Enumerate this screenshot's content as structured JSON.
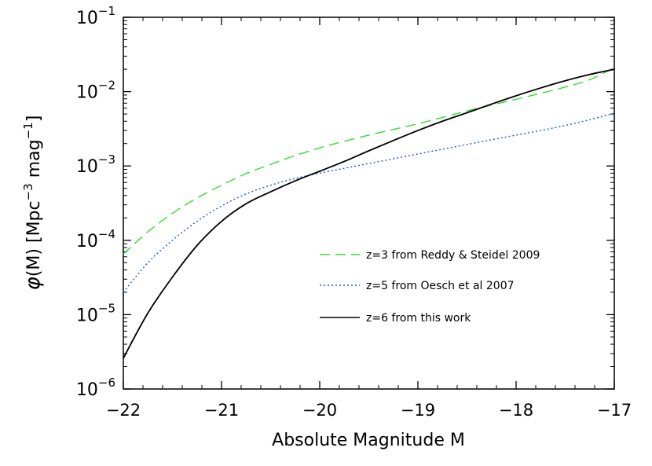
{
  "chart_data": {
    "type": "line",
    "title": "",
    "xlabel": "Absolute Magnitude M",
    "ylabel": "φ(M)  [Mpc^-3 mag^-1]",
    "ylabel_parts": {
      "phi": "φ",
      "main": "(M)  [Mpc",
      "exp1": "−3",
      "mid": " mag",
      "exp2": "−1",
      "end": "]"
    },
    "xlim": [
      -22,
      -17
    ],
    "ylim": [
      1e-06,
      0.1
    ],
    "yscale": "log",
    "grid": false,
    "legend_position": "center-right",
    "x_ticks": [
      {
        "value": -22,
        "label": "−22"
      },
      {
        "value": -21,
        "label": "−21"
      },
      {
        "value": -20,
        "label": "−20"
      },
      {
        "value": -19,
        "label": "−19"
      },
      {
        "value": -18,
        "label": "−18"
      },
      {
        "value": -17,
        "label": "−17"
      }
    ],
    "y_ticks": [
      {
        "value": 1e-06,
        "base": "10",
        "exp": "−6"
      },
      {
        "value": 1e-05,
        "base": "10",
        "exp": "−5"
      },
      {
        "value": 0.0001,
        "base": "10",
        "exp": "−4"
      },
      {
        "value": 0.001,
        "base": "10",
        "exp": "−3"
      },
      {
        "value": 0.01,
        "base": "10",
        "exp": "−2"
      },
      {
        "value": 0.1,
        "base": "10",
        "exp": "−1"
      }
    ],
    "series": [
      {
        "name": "z=3 from Reddy & Steidel 2009",
        "color": "#33dd33",
        "dash": "dashed",
        "x": [
          -22,
          -21.75,
          -21.5,
          -21.25,
          -21,
          -20.75,
          -20.5,
          -20.25,
          -20,
          -19.75,
          -19.5,
          -19.25,
          -19,
          -18.75,
          -18.5,
          -18.25,
          -18,
          -17.75,
          -17.5,
          -17.25,
          -17
        ],
        "y": [
          6.5e-05,
          0.00013,
          0.00023,
          0.00037,
          0.00055,
          0.00079,
          0.00105,
          0.00138,
          0.00175,
          0.00215,
          0.0026,
          0.0031,
          0.0037,
          0.0045,
          0.0055,
          0.0066,
          0.0079,
          0.0095,
          0.0115,
          0.0145,
          0.021
        ]
      },
      {
        "name": "z=5 from Oesch et al 2007",
        "color": "#2255dd",
        "dash": "dotted",
        "x": [
          -22,
          -21.75,
          -21.5,
          -21.25,
          -21,
          -20.75,
          -20.5,
          -20.25,
          -20,
          -19.75,
          -19.5,
          -19.25,
          -19,
          -18.75,
          -18.5,
          -18.25,
          -18,
          -17.75,
          -17.5,
          -17.25,
          -17
        ],
        "y": [
          2e-05,
          5e-05,
          0.0001,
          0.00018,
          0.00029,
          0.00042,
          0.00055,
          0.00068,
          0.0008,
          0.00093,
          0.00108,
          0.00125,
          0.00145,
          0.00168,
          0.00195,
          0.00225,
          0.0026,
          0.003,
          0.0035,
          0.0042,
          0.0051
        ]
      },
      {
        "name": "z=6 from this work",
        "color": "#000000",
        "dash": "solid",
        "x": [
          -22,
          -21.75,
          -21.5,
          -21.25,
          -21,
          -20.75,
          -20.5,
          -20.25,
          -20,
          -19.75,
          -19.5,
          -19.25,
          -19,
          -18.75,
          -18.5,
          -18.25,
          -18,
          -17.75,
          -17.5,
          -17.25,
          -17
        ],
        "y": [
          2.6e-06,
          1.05e-05,
          3.2e-05,
          8.5e-05,
          0.00018,
          0.00031,
          0.00045,
          0.00063,
          0.00085,
          0.00115,
          0.0016,
          0.0022,
          0.003,
          0.004,
          0.0052,
          0.0068,
          0.0088,
          0.0112,
          0.014,
          0.017,
          0.02
        ]
      }
    ]
  }
}
